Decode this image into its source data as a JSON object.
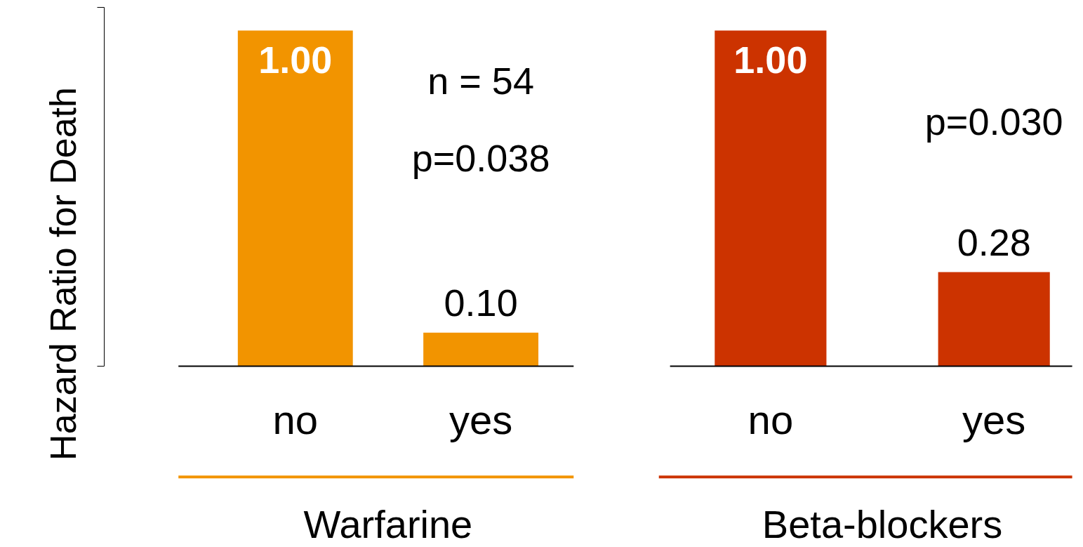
{
  "chart_data": [
    {
      "type": "bar",
      "ylabel": "Hazard Ratio for Death",
      "xlabel": "Warfarine",
      "categories": [
        "no",
        "yes"
      ],
      "values": [
        1.0,
        0.1
      ],
      "value_labels": [
        "1.00",
        "0.10"
      ],
      "color": "#f29400",
      "tick_labels": "x",
      "grid": false,
      "annotations": [
        "n = 54",
        "p=0.038"
      ]
    },
    {
      "type": "bar",
      "xlabel": "Beta-blockers",
      "categories": [
        "no",
        "yes"
      ],
      "values": [
        1.0,
        0.28
      ],
      "value_labels": [
        "1.00",
        "0.28"
      ],
      "color": "#cc3300",
      "tick_labels": "x",
      "grid": false,
      "annotations": [
        "p=0.030"
      ]
    }
  ]
}
